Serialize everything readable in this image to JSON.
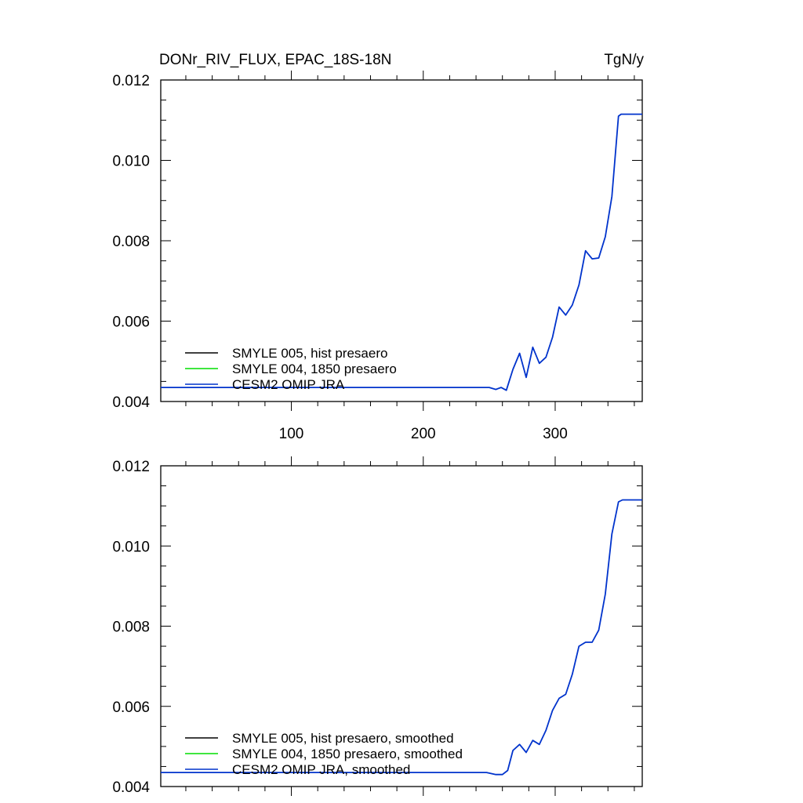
{
  "chart_data": [
    {
      "type": "line",
      "title": "DONr_RIV_FLUX, EPAC_18S-18N",
      "units": "TgN/y",
      "xlim": [
        1,
        366
      ],
      "ylim": [
        0.004,
        0.012
      ],
      "x_ticks": [
        100,
        200,
        300
      ],
      "x_tick_labels": [
        "100",
        "200",
        "300"
      ],
      "y_ticks": [
        0.004,
        0.006,
        0.008,
        0.01,
        0.012
      ],
      "y_tick_labels": [
        "0.004",
        "0.006",
        "0.008",
        "0.010",
        "0.012"
      ],
      "grid": false,
      "legend_position": "bottom-left",
      "series": [
        {
          "name": "SMYLE 005, hist presaero",
          "color": "#000000",
          "x": [],
          "y": []
        },
        {
          "name": "SMYLE 004, 1850 presaero",
          "color": "#00dd00",
          "x": [],
          "y": []
        },
        {
          "name": "CESM2 OMIP JRA",
          "color": "#0033cc",
          "x": [
            1,
            250,
            255,
            259,
            263,
            268,
            273,
            278,
            283,
            288,
            293,
            298,
            303,
            308,
            313,
            318,
            323,
            328,
            333,
            338,
            343,
            348,
            350,
            366
          ],
          "y": [
            0.00435,
            0.00435,
            0.0043,
            0.00435,
            0.00428,
            0.0048,
            0.0052,
            0.0046,
            0.00535,
            0.00495,
            0.0051,
            0.0056,
            0.00635,
            0.00615,
            0.0064,
            0.0069,
            0.00775,
            0.00755,
            0.00757,
            0.0081,
            0.0091,
            0.0111,
            0.01115,
            0.01115
          ]
        }
      ]
    },
    {
      "type": "line",
      "title": "",
      "units": "",
      "xlim": [
        1,
        366
      ],
      "ylim": [
        0.004,
        0.012
      ],
      "x_ticks": [
        100,
        200,
        300
      ],
      "x_tick_labels": [],
      "y_ticks": [
        0.004,
        0.006,
        0.008,
        0.01,
        0.012
      ],
      "y_tick_labels": [
        "0.004",
        "0.006",
        "0.008",
        "0.010",
        "0.012"
      ],
      "grid": false,
      "legend_position": "bottom-left",
      "series": [
        {
          "name": "SMYLE 005, hist presaero, smoothed",
          "color": "#000000",
          "x": [],
          "y": []
        },
        {
          "name": "SMYLE 004, 1850 presaero, smoothed",
          "color": "#00dd00",
          "x": [],
          "y": []
        },
        {
          "name": "CESM2 OMIP JRA, smoothed",
          "color": "#0033cc",
          "x": [
            1,
            248,
            255,
            260,
            264,
            268,
            273,
            278,
            283,
            288,
            293,
            298,
            303,
            308,
            313,
            318,
            323,
            328,
            333,
            338,
            343,
            348,
            351,
            366
          ],
          "y": [
            0.00435,
            0.00435,
            0.0043,
            0.0043,
            0.0044,
            0.0049,
            0.00505,
            0.00485,
            0.00515,
            0.00505,
            0.0054,
            0.0059,
            0.0062,
            0.0063,
            0.0068,
            0.0075,
            0.0076,
            0.0076,
            0.0079,
            0.0088,
            0.0103,
            0.0111,
            0.01115,
            0.01115
          ]
        }
      ]
    }
  ]
}
